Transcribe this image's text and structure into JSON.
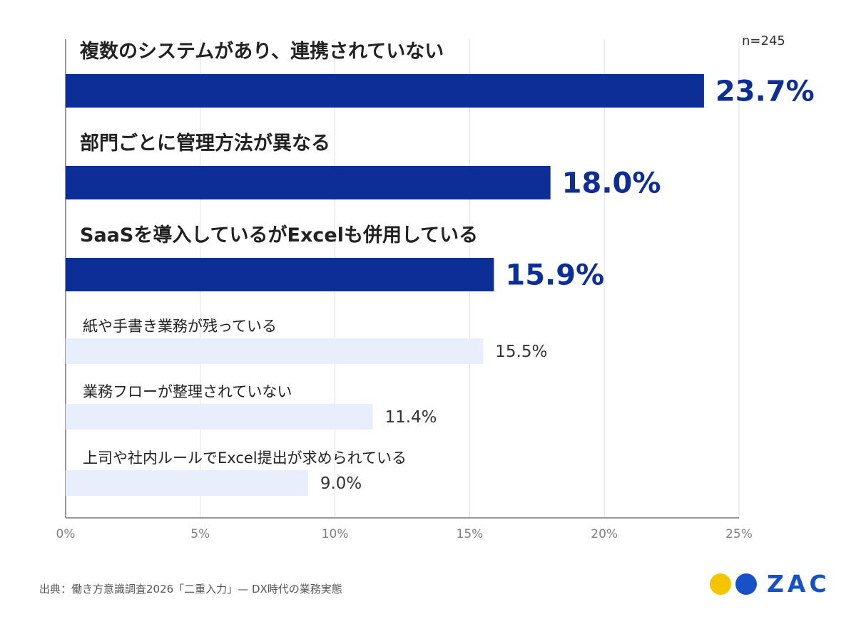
{
  "chart_data": {
    "type": "bar",
    "orientation": "horizontal",
    "categories": [
      "複数のシステムがあり、連携されていない",
      "部門ごとに管理方法が異なる",
      "SaaSを導入しているがExcelも併用している",
      "紙や手書き業務が残っている",
      "業務フローが整理されていない",
      "上司や社内ルールでExcel提出が求められている"
    ],
    "values": [
      23.7,
      18.0,
      15.9,
      15.5,
      11.4,
      9.0
    ],
    "value_labels": [
      "23.7%",
      "18.0%",
      "15.9%",
      "15.5%",
      "11.4%",
      "9.0%"
    ],
    "highlighted_count": 3,
    "xlim": [
      0,
      25
    ],
    "xticks": [
      0,
      5,
      10,
      15,
      20,
      25
    ],
    "xtick_labels": [
      "0%",
      "5%",
      "10%",
      "15%",
      "20%",
      "25%"
    ],
    "grid": true,
    "legend": "none",
    "colors": {
      "highlight_bar": "#0c2e96",
      "normal_bar": "#e8eefc",
      "highlight_text": "#0c2e96",
      "normal_text": "#333333",
      "category_text": "#222222",
      "grid": "#e2e2e2",
      "axis": "#777777",
      "tick_text": "#7f7f7f"
    }
  },
  "sample_size": "n=245",
  "source": "出典：働き方意識調査2026「二重入力」— DX時代の業務実態",
  "logo": {
    "text": "ZAC",
    "dot_colors": [
      "#f5c400",
      "#1750c7"
    ],
    "text_color": "#1750c7"
  }
}
